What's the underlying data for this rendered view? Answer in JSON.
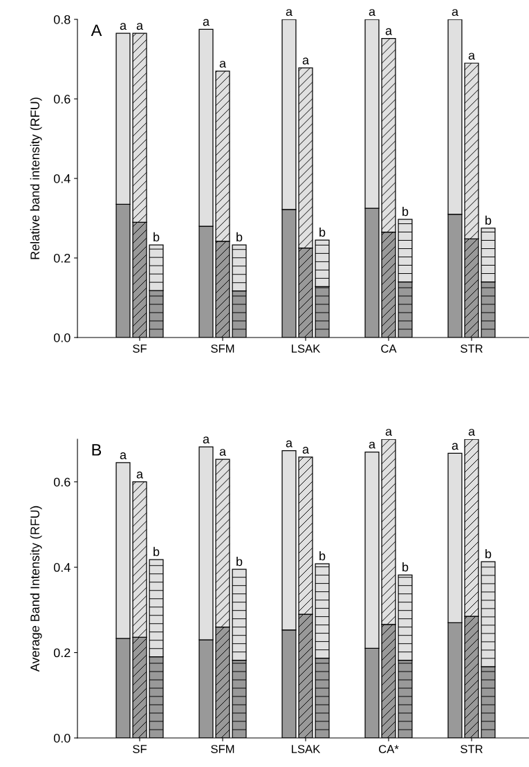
{
  "chart_data": [
    {
      "type": "bar",
      "title": "A",
      "ylabel": "Relative band intensity (RFU)",
      "categories": [
        null,
        "SF",
        null,
        null,
        null,
        null,
        "SFM",
        null,
        null,
        null,
        null,
        "LSAK",
        null,
        null,
        null,
        null,
        "CA",
        null,
        null,
        null,
        null,
        "STR",
        null
      ],
      "stacked": true,
      "ylim": [
        0,
        0.8
      ],
      "yticks": [
        {
          "value": 0,
          "label": "0.0"
        },
        0.2,
        0.4,
        0.6,
        0.8
      ],
      "grid": false,
      "legend": false,
      "series": [
        {
          "color": "#999999",
          "values": [
            0.335,
            0.29,
            0.118,
            null,
            null,
            0.28,
            0.242,
            0.117,
            null,
            null,
            0.322,
            0.225,
            0.128,
            null,
            null,
            0.325,
            0.265,
            0.14,
            null,
            null,
            0.31,
            0.248,
            0.14
          ]
        },
        {
          "color": "#e0e0e0",
          "values": [
            0.43,
            0.475,
            0.115,
            null,
            null,
            0.495,
            0.428,
            0.116,
            null,
            null,
            0.478,
            0.453,
            0.117,
            null,
            null,
            0.475,
            0.487,
            0.157,
            null,
            null,
            0.49,
            0.442,
            0.135
          ],
          "value_labels": [
            "a",
            "a",
            "b",
            null,
            null,
            "a",
            "a",
            "b",
            null,
            null,
            "a",
            "a",
            "b",
            null,
            null,
            "a",
            "a",
            "b",
            null,
            null,
            "a",
            "a",
            "b"
          ]
        }
      ]
    },
    {
      "type": "bar",
      "title": "B",
      "ylabel": "Average Band Intensity (RFU)",
      "categories": [
        null,
        "SF",
        null,
        null,
        null,
        null,
        "SFM",
        null,
        null,
        null,
        null,
        "LSAK",
        null,
        null,
        null,
        null,
        "CA*",
        null,
        null,
        null,
        null,
        "STR",
        null
      ],
      "stacked": true,
      "ylim": [
        0,
        0.7
      ],
      "yticks": [
        {
          "value": 0,
          "label": "0.0"
        },
        0.2,
        0.4,
        0.6
      ],
      "grid": false,
      "legend": false,
      "series": [
        {
          "color": "#999999",
          "values": [
            0.233,
            0.236,
            0.19,
            null,
            null,
            0.23,
            0.26,
            0.182,
            null,
            null,
            0.253,
            0.29,
            0.187,
            null,
            null,
            0.21,
            0.266,
            0.182,
            null,
            null,
            0.27,
            0.285,
            0.167
          ]
        },
        {
          "color": "#e0e0e0",
          "values": [
            0.412,
            0.364,
            0.228,
            null,
            null,
            0.452,
            0.393,
            0.213,
            null,
            null,
            0.42,
            0.368,
            0.221,
            null,
            null,
            0.46,
            0.434,
            0.2,
            null,
            null,
            0.397,
            0.415,
            0.246
          ],
          "value_labels": [
            "a",
            "a",
            "b",
            null,
            null,
            "a",
            "a",
            "b",
            null,
            null,
            "a",
            "a",
            "b",
            null,
            null,
            "a",
            "a",
            "b",
            null,
            null,
            "a",
            "a",
            "b"
          ]
        }
      ]
    }
  ]
}
